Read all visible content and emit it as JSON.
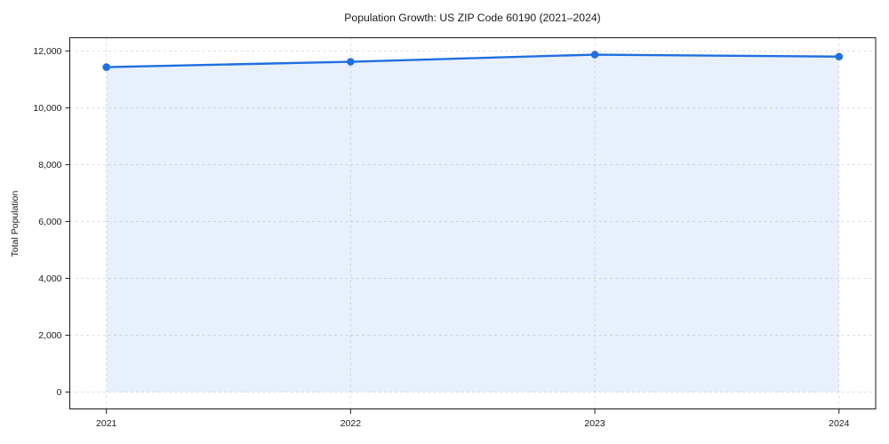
{
  "page": {
    "background": "#ffffff"
  },
  "chart_data": {
    "type": "line",
    "title": "Population Growth: US ZIP Code 60190 (2021–2024)",
    "xlabel": "",
    "ylabel": "Total Population",
    "x": [
      2021,
      2022,
      2023,
      2024
    ],
    "x_tick_labels": [
      "2021",
      "2022",
      "2023",
      "2024"
    ],
    "series": [
      {
        "name": "Total Population",
        "values": [
          11430,
          11620,
          11870,
          11800
        ]
      }
    ],
    "y_ticks": [
      0,
      2000,
      4000,
      6000,
      8000,
      10000,
      12000
    ],
    "y_tick_labels": [
      "0",
      "2,000",
      "4,000",
      "6,000",
      "8,000",
      "10,000",
      "12,000"
    ],
    "xlim": [
      2020.85,
      2024.15
    ],
    "ylim": [
      -594,
      12464
    ],
    "grid": true,
    "grid_style": "dashed",
    "legend": false,
    "marker": "circle",
    "area_fill": true,
    "colors": {
      "line": "#1f6fe0",
      "fill_opacity": 0.1,
      "grid": "#d9d9d9",
      "axis": "#1a1a1a",
      "text": "#1a1a1a",
      "background": "#ffffff"
    }
  }
}
